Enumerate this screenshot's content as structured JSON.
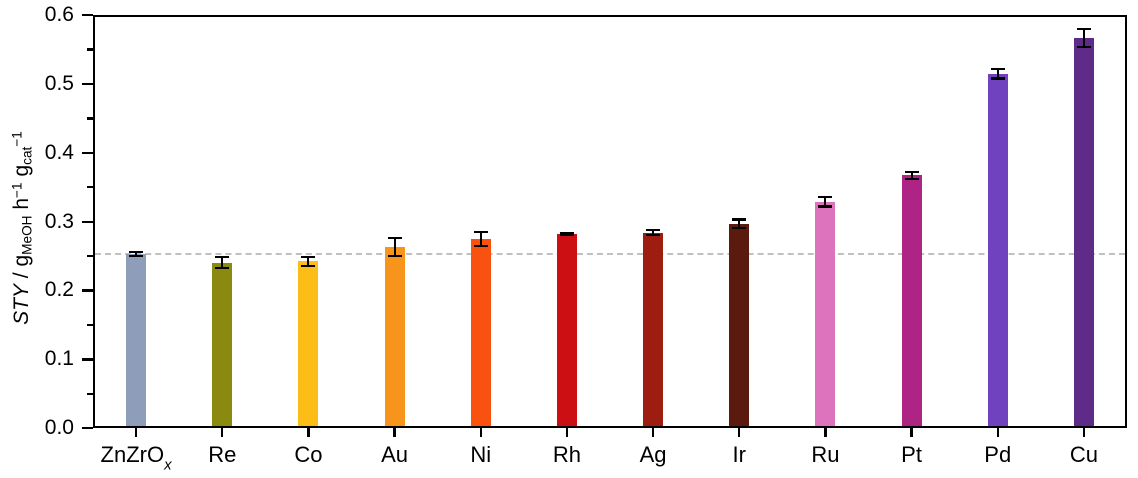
{
  "figure": {
    "background": "#ffffff",
    "axis_color": "#000000",
    "text_color": "#000000"
  },
  "chart_data": {
    "type": "bar",
    "title": "",
    "xlabel": "",
    "ylabel": "STY / g_MeOH h^-1 g_cat^-1",
    "ylabel_parts": {
      "sty": "STY",
      "p1": " / g",
      "sub1": "MeOH",
      "p2": " h",
      "sup1": "−1",
      "p3": " g",
      "sub2": "cat",
      "sup2": "−1"
    },
    "ylim": [
      0,
      0.6
    ],
    "ytick_step": 0.1,
    "ytick_labels": [
      "0.0",
      "0.1",
      "0.2",
      "0.3",
      "0.4",
      "0.5",
      "0.6"
    ],
    "minor_tick_step": 0.05,
    "grid": false,
    "legend": false,
    "frame": "full-box",
    "reference_line": {
      "value": 0.253,
      "style": "dashed",
      "color": "#c0c0c0"
    },
    "categories": [
      "ZnZrOx",
      "Re",
      "Co",
      "Au",
      "Ni",
      "Rh",
      "Ag",
      "Ir",
      "Ru",
      "Pt",
      "Pd",
      "Cu"
    ],
    "series": [
      {
        "name": "STY",
        "values": [
          0.253,
          0.24,
          0.242,
          0.263,
          0.275,
          0.282,
          0.284,
          0.297,
          0.329,
          0.367,
          0.515,
          0.567
        ]
      }
    ],
    "bars": [
      {
        "label": "ZnZrO",
        "label_sub": "x",
        "value": 0.253,
        "error": 0.003,
        "color": "#8E9EBA"
      },
      {
        "label": "Re",
        "label_sub": "",
        "value": 0.24,
        "error": 0.008,
        "color": "#8B8A10"
      },
      {
        "label": "Co",
        "label_sub": "",
        "value": 0.242,
        "error": 0.007,
        "color": "#FBBD16"
      },
      {
        "label": "Au",
        "label_sub": "",
        "value": 0.263,
        "error": 0.013,
        "color": "#F7941C"
      },
      {
        "label": "Ni",
        "label_sub": "",
        "value": 0.275,
        "error": 0.01,
        "color": "#F95210"
      },
      {
        "label": "Rh",
        "label_sub": "",
        "value": 0.282,
        "error": 0.002,
        "color": "#CC0F13"
      },
      {
        "label": "Ag",
        "label_sub": "",
        "value": 0.284,
        "error": 0.004,
        "color": "#9E1D11"
      },
      {
        "label": "Ir",
        "label_sub": "",
        "value": 0.297,
        "error": 0.006,
        "color": "#5B1A0E"
      },
      {
        "label": "Ru",
        "label_sub": "",
        "value": 0.329,
        "error": 0.007,
        "color": "#DC73BC"
      },
      {
        "label": "Pt",
        "label_sub": "",
        "value": 0.367,
        "error": 0.005,
        "color": "#AD2484"
      },
      {
        "label": "Pd",
        "label_sub": "",
        "value": 0.515,
        "error": 0.007,
        "color": "#7042BF"
      },
      {
        "label": "Cu",
        "label_sub": "",
        "value": 0.567,
        "error": 0.013,
        "color": "#5F2B88"
      }
    ]
  }
}
